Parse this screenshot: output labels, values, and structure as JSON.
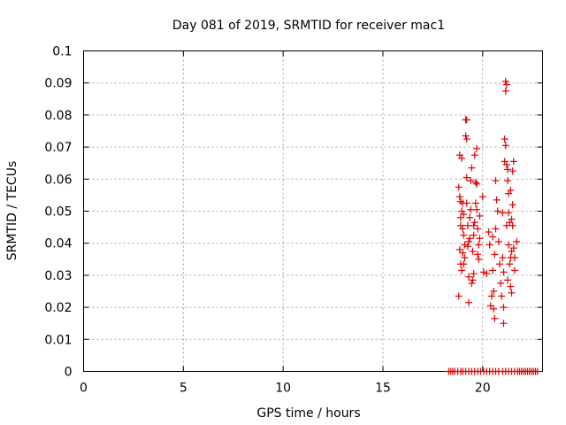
{
  "chart_data": {
    "type": "scatter",
    "title": "Day 081 of 2019, SRMTID for receiver mac1",
    "xlabel": "GPS time / hours",
    "ylabel": "SRMTID / TECUs",
    "xlim": [
      0,
      23
    ],
    "ylim": [
      0,
      0.1
    ],
    "x_ticks": [
      "0",
      "5",
      "10",
      "15",
      "20"
    ],
    "x_tick_values": [
      0,
      5,
      10,
      15,
      20
    ],
    "y_ticks": [
      "0",
      "0.01",
      "0.02",
      "0.03",
      "0.04",
      "0.05",
      "0.06",
      "0.07",
      "0.08",
      "0.09",
      "0.1"
    ],
    "y_tick_values": [
      0,
      0.01,
      0.02,
      0.03,
      0.04,
      0.05,
      0.06,
      0.07,
      0.08,
      0.09,
      0.1
    ],
    "grid": true,
    "marker_color": "#e00000",
    "series": [
      {
        "marker": "plus",
        "points": [
          [
            18.8,
            0.0235
          ],
          [
            18.8,
            0.0575
          ],
          [
            18.85,
            0.0545
          ],
          [
            18.85,
            0.0675
          ],
          [
            18.9,
            0.053
          ],
          [
            18.9,
            0.048
          ],
          [
            18.95,
            0.05
          ],
          [
            18.95,
            0.0665
          ],
          [
            18.85,
            0.038
          ],
          [
            18.9,
            0.0335
          ],
          [
            18.95,
            0.0315
          ],
          [
            19.0,
            0.0445
          ],
          [
            19.0,
            0.037
          ],
          [
            19.0,
            0.0525
          ],
          [
            19.05,
            0.049
          ],
          [
            19.05,
            0.0425
          ],
          [
            19.1,
            0.0395
          ],
          [
            19.1,
            0.0355
          ],
          [
            19.15,
            0.0785
          ],
          [
            19.15,
            0.0735
          ],
          [
            19.2,
            0.0785
          ],
          [
            19.2,
            0.0725
          ],
          [
            19.2,
            0.0605
          ],
          [
            19.2,
            0.0525
          ],
          [
            19.25,
            0.0455
          ],
          [
            19.25,
            0.039
          ],
          [
            19.3,
            0.0215
          ],
          [
            19.3,
            0.0295
          ],
          [
            19.35,
            0.048
          ],
          [
            19.35,
            0.0415
          ],
          [
            19.4,
            0.0505
          ],
          [
            19.4,
            0.0595
          ],
          [
            19.45,
            0.0635
          ],
          [
            19.45,
            0.0275
          ],
          [
            19.5,
            0.0375
          ],
          [
            19.5,
            0.0285
          ],
          [
            19.55,
            0.0305
          ],
          [
            19.55,
            0.0455
          ],
          [
            19.6,
            0.0465
          ],
          [
            19.6,
            0.0675
          ],
          [
            19.65,
            0.059
          ],
          [
            19.65,
            0.0525
          ],
          [
            19.7,
            0.0695
          ],
          [
            19.7,
            0.0585
          ],
          [
            19.75,
            0.0445
          ],
          [
            19.75,
            0.0365
          ],
          [
            19.8,
            0.035
          ],
          [
            19.8,
            0.0395
          ],
          [
            19.85,
            0.0415
          ],
          [
            19.85,
            0.0485
          ],
          [
            18.9,
            0.0455
          ],
          [
            19.05,
            0.0335
          ],
          [
            19.3,
            0.0405
          ],
          [
            19.55,
            0.0425
          ],
          [
            19.7,
            0.0505
          ],
          [
            20.0,
            0.0545
          ],
          [
            20.05,
            0.031
          ],
          [
            20.2,
            0.0305
          ],
          [
            20.3,
            0.0435
          ],
          [
            20.35,
            0.0395
          ],
          [
            20.4,
            0.0205
          ],
          [
            20.45,
            0.0235
          ],
          [
            20.5,
            0.042
          ],
          [
            20.5,
            0.0315
          ],
          [
            20.55,
            0.025
          ],
          [
            20.55,
            0.0195
          ],
          [
            20.6,
            0.0165
          ],
          [
            20.6,
            0.0365
          ],
          [
            20.65,
            0.0595
          ],
          [
            20.7,
            0.0535
          ],
          [
            20.75,
            0.05
          ],
          [
            20.8,
            0.0405
          ],
          [
            20.85,
            0.0335
          ],
          [
            20.9,
            0.0275
          ],
          [
            20.95,
            0.0235
          ],
          [
            21.0,
            0.0495
          ],
          [
            21.0,
            0.0355
          ],
          [
            21.05,
            0.015
          ],
          [
            21.05,
            0.02
          ],
          [
            21.1,
            0.0725
          ],
          [
            21.1,
            0.0655
          ],
          [
            21.15,
            0.0905
          ],
          [
            21.15,
            0.0875
          ],
          [
            21.2,
            0.0895
          ],
          [
            21.2,
            0.0645
          ],
          [
            21.25,
            0.063
          ],
          [
            21.25,
            0.0595
          ],
          [
            21.3,
            0.0555
          ],
          [
            21.3,
            0.0495
          ],
          [
            21.35,
            0.0465
          ],
          [
            21.35,
            0.0335
          ],
          [
            21.4,
            0.0355
          ],
          [
            21.4,
            0.0265
          ],
          [
            21.45,
            0.0245
          ],
          [
            21.45,
            0.0375
          ],
          [
            21.5,
            0.0455
          ],
          [
            21.5,
            0.052
          ],
          [
            21.55,
            0.0655
          ],
          [
            21.55,
            0.0385
          ],
          [
            21.6,
            0.0355
          ],
          [
            21.6,
            0.0315
          ],
          [
            21.7,
            0.0405
          ],
          [
            21.15,
            0.0705
          ],
          [
            21.2,
            0.0455
          ],
          [
            21.3,
            0.0395
          ],
          [
            21.4,
            0.0565
          ],
          [
            21.5,
            0.0625
          ],
          [
            21.05,
            0.031
          ],
          [
            21.25,
            0.0285
          ],
          [
            21.45,
            0.0475
          ],
          [
            20.65,
            0.0445
          ],
          [
            18.3,
            0
          ],
          [
            18.4,
            0
          ],
          [
            18.5,
            0
          ],
          [
            18.6,
            0
          ],
          [
            18.75,
            0
          ],
          [
            18.9,
            0
          ],
          [
            19.0,
            0
          ],
          [
            19.15,
            0
          ],
          [
            19.3,
            0
          ],
          [
            19.45,
            0
          ],
          [
            19.6,
            0
          ],
          [
            19.75,
            0
          ],
          [
            19.9,
            0
          ],
          [
            20.05,
            0
          ],
          [
            20.2,
            0
          ],
          [
            20.35,
            0
          ],
          [
            20.5,
            0
          ],
          [
            20.65,
            0
          ],
          [
            20.8,
            0
          ],
          [
            21.0,
            0
          ],
          [
            21.15,
            0
          ],
          [
            21.3,
            0
          ],
          [
            21.45,
            0
          ],
          [
            21.6,
            0
          ],
          [
            21.75,
            0
          ],
          [
            21.85,
            0
          ],
          [
            21.95,
            0
          ],
          [
            22.05,
            0
          ],
          [
            22.15,
            0
          ],
          [
            22.25,
            0
          ],
          [
            22.35,
            0
          ],
          [
            22.45,
            0
          ],
          [
            22.55,
            0
          ],
          [
            22.65,
            0
          ],
          [
            22.75,
            0
          ]
        ]
      }
    ]
  }
}
